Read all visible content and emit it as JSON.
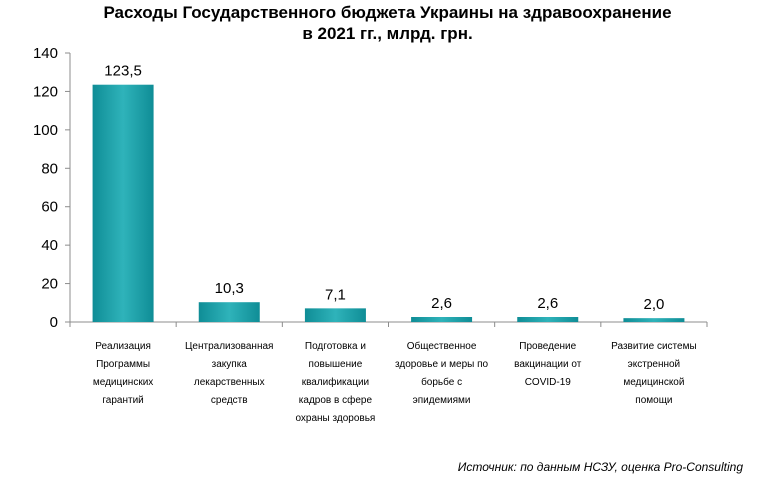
{
  "chart_data": {
    "type": "bar",
    "title_lines": [
      "Расходы Государственного бюджета Украины на здравоохранение",
      "в 2021 гг., млрд. грн."
    ],
    "categories": [
      [
        "Реализация",
        "Программы",
        "медицинских",
        "гарантий"
      ],
      [
        "Централизованная",
        "закупка",
        "лекарственных",
        "средств"
      ],
      [
        "Подготовка и",
        "повышение",
        "квалификации",
        "кадров в сфере",
        "охраны здоровья"
      ],
      [
        "Общественное",
        "здоровье и меры по",
        "борьбе с",
        "эпидемиями"
      ],
      [
        "Проведение",
        "вакцинации от",
        "COVID-19"
      ],
      [
        "Развитие системы",
        "экстренной",
        "медицинской",
        "помощи"
      ]
    ],
    "values": [
      123.5,
      10.3,
      7.1,
      2.6,
      2.6,
      2.0
    ],
    "data_labels": [
      "123,5",
      "10,3",
      "7,1",
      "2,6",
      "2,6",
      "2,0"
    ],
    "ylim": [
      0,
      140
    ],
    "yticks": [
      0,
      20,
      40,
      60,
      80,
      100,
      120,
      140
    ],
    "xlabel": "",
    "ylabel": "",
    "grid": false,
    "bar_color": "#1aa0a8"
  },
  "source": "Источник: по данным НСЗУ, оценка Pro-Consulting"
}
